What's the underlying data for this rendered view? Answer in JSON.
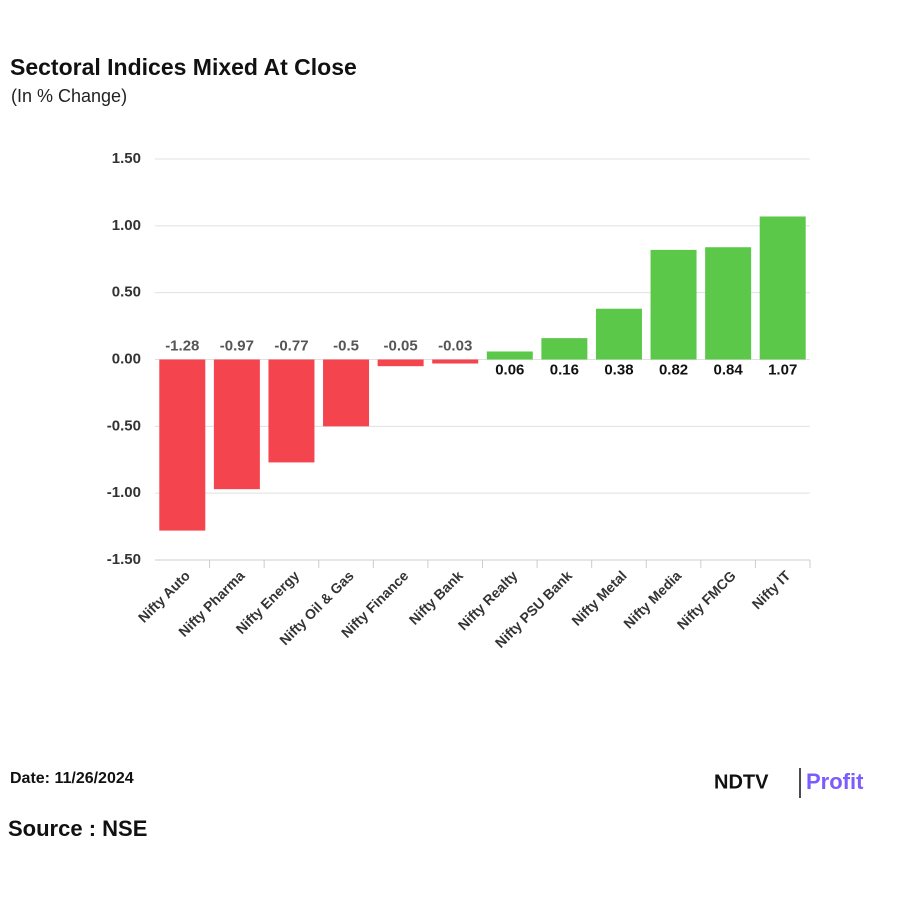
{
  "chart_data": {
    "type": "bar",
    "title": "Sectoral Indices Mixed At Close",
    "subtitle": "(In % Change)",
    "categories": [
      "Nifty Auto",
      "Nifty Pharma",
      "Nifty Energy",
      "Nifty Oil & Gas",
      "Nifty Finance",
      "Nifty Bank",
      "Nifty Realty",
      "Nifty PSU Bank",
      "Nifty Metal",
      "Nifty Media",
      "Nifty FMCG",
      "Nifty IT"
    ],
    "values": [
      -1.28,
      -0.97,
      -0.77,
      -0.5,
      -0.05,
      -0.03,
      0.06,
      0.16,
      0.38,
      0.82,
      0.84,
      1.07
    ],
    "colors": {
      "positive": "#5cc84a",
      "negative": "#f4454f"
    },
    "ylim": [
      -1.5,
      1.5
    ],
    "yticks": [
      {
        "value": 1.5,
        "label": "1.50"
      },
      {
        "value": 1,
        "label": "1.00"
      },
      {
        "value": 0.5,
        "label": "0.50"
      },
      {
        "value": 0,
        "label": "0.00"
      },
      {
        "value": -0.5,
        "label": "-0.50"
      },
      {
        "value": -1,
        "label": "-1.00"
      },
      {
        "value": -1.5,
        "label": "-1.50"
      }
    ],
    "grid": true
  },
  "footer": {
    "date": "Date: 11/26/2024",
    "source": "Source : NSE",
    "logo_left": "NDTV",
    "logo_right": "Profit"
  }
}
